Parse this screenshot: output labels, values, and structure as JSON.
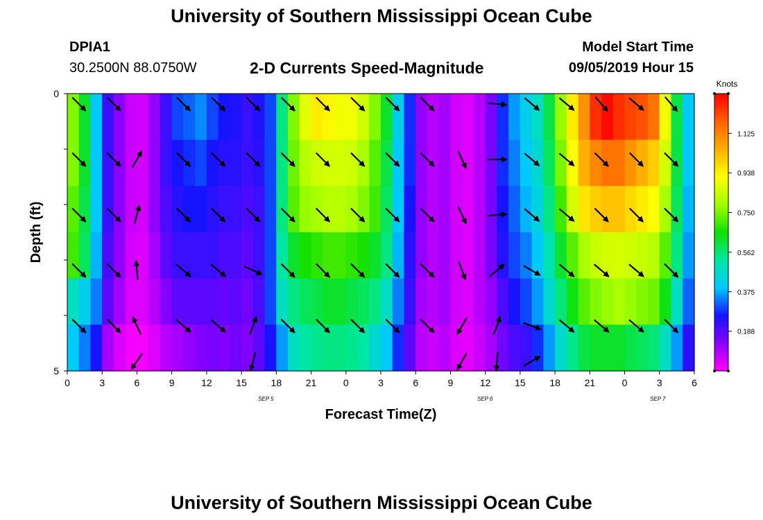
{
  "header": {
    "title_top": "University of Southern Mississippi Ocean Cube",
    "station": "DPIA1",
    "coords": "30.2500N 88.0750W",
    "subtitle": "2-D Currents Speed-Magnitude",
    "model_label": "Model Start Time",
    "model_time": "09/05/2019 Hour 15",
    "title_bottom": "University of Southern Mississippi Ocean Cube"
  },
  "chart_data": {
    "type": "heatmap",
    "title": "2-D Currents Speed-Magnitude",
    "xlabel": "Forecast Time(Z)",
    "ylabel": "Depth (ft)",
    "x_tick_labels": [
      "0",
      "3",
      "6",
      "9",
      "12",
      "15",
      "18",
      "21",
      "0",
      "3",
      "6",
      "9",
      "12",
      "15",
      "18",
      "21",
      "0",
      "3",
      "6"
    ],
    "date_labels": [
      {
        "label": "SEP 5",
        "at_tick": 5.7
      },
      {
        "label": "SEP 6",
        "at_tick": 11.99
      },
      {
        "label": "SEP 7",
        "at_tick": 16.95
      }
    ],
    "y_tick_labels": [
      "0",
      "5"
    ],
    "depth_range": [
      0,
      5
    ],
    "x_range_hours": [
      0,
      54
    ],
    "hours_per_column": 1,
    "depth_levels": 5,
    "colorbar": {
      "title": "Knots",
      "tick_labels": [
        "0.188",
        "0.375",
        "0.562",
        "0.750",
        "0.938",
        "1.125"
      ],
      "ticks": [
        0.188,
        0.375,
        0.562,
        0.75,
        0.938,
        1.125
      ],
      "range": [
        0,
        1.313
      ],
      "stops": [
        "#ff00ff",
        "#8a00ff",
        "#1414ff",
        "#00c8ff",
        "#00e8a0",
        "#10e000",
        "#a0ff00",
        "#ffff00",
        "#ffb000",
        "#ff6000",
        "#ff0000"
      ]
    },
    "speeds_by_row": [
      [
        0.76,
        0.62,
        0.4,
        0.22,
        0.13,
        0.06,
        0.05,
        0.12,
        0.22,
        0.3,
        0.32,
        0.35,
        0.3,
        0.26,
        0.25,
        0.22,
        0.25,
        0.3,
        0.55,
        0.76,
        0.88,
        0.95,
        0.93,
        0.9,
        0.9,
        0.85,
        0.76,
        0.62,
        0.42,
        0.28,
        0.12,
        0.08,
        0.1,
        0.05,
        0.04,
        0.08,
        0.15,
        0.28,
        0.36,
        0.42,
        0.48,
        0.6,
        0.78,
        0.95,
        1.1,
        1.25,
        1.3,
        1.25,
        1.22,
        1.2,
        1.15,
        0.9,
        0.6,
        0.4
      ],
      [
        0.76,
        0.62,
        0.4,
        0.22,
        0.13,
        0.06,
        0.05,
        0.12,
        0.22,
        0.26,
        0.28,
        0.3,
        0.26,
        0.24,
        0.24,
        0.22,
        0.24,
        0.3,
        0.55,
        0.74,
        0.82,
        0.85,
        0.86,
        0.86,
        0.85,
        0.8,
        0.72,
        0.6,
        0.4,
        0.28,
        0.12,
        0.08,
        0.1,
        0.05,
        0.04,
        0.08,
        0.15,
        0.28,
        0.34,
        0.4,
        0.46,
        0.58,
        0.75,
        0.92,
        1.05,
        1.12,
        1.15,
        1.15,
        1.1,
        1.05,
        1.0,
        0.86,
        0.6,
        0.4
      ],
      [
        0.72,
        0.6,
        0.4,
        0.22,
        0.13,
        0.06,
        0.05,
        0.12,
        0.2,
        0.24,
        0.26,
        0.26,
        0.24,
        0.22,
        0.22,
        0.2,
        0.22,
        0.3,
        0.55,
        0.72,
        0.78,
        0.8,
        0.82,
        0.82,
        0.8,
        0.76,
        0.7,
        0.58,
        0.4,
        0.26,
        0.12,
        0.08,
        0.1,
        0.05,
        0.04,
        0.08,
        0.15,
        0.26,
        0.32,
        0.38,
        0.44,
        0.55,
        0.7,
        0.86,
        0.96,
        1.0,
        1.02,
        1.02,
        0.98,
        0.95,
        0.92,
        0.8,
        0.58,
        0.38
      ],
      [
        0.7,
        0.58,
        0.38,
        0.2,
        0.12,
        0.05,
        0.04,
        0.1,
        0.18,
        0.22,
        0.22,
        0.22,
        0.22,
        0.2,
        0.2,
        0.18,
        0.22,
        0.3,
        0.52,
        0.62,
        0.66,
        0.68,
        0.7,
        0.7,
        0.68,
        0.66,
        0.62,
        0.55,
        0.38,
        0.24,
        0.12,
        0.08,
        0.1,
        0.05,
        0.04,
        0.08,
        0.15,
        0.24,
        0.3,
        0.34,
        0.4,
        0.5,
        0.62,
        0.72,
        0.8,
        0.84,
        0.86,
        0.86,
        0.85,
        0.84,
        0.82,
        0.72,
        0.55,
        0.36
      ],
      [
        0.48,
        0.42,
        0.34,
        0.18,
        0.1,
        0.04,
        0.04,
        0.08,
        0.14,
        0.18,
        0.18,
        0.18,
        0.18,
        0.17,
        0.18,
        0.16,
        0.2,
        0.3,
        0.48,
        0.55,
        0.58,
        0.6,
        0.62,
        0.62,
        0.6,
        0.58,
        0.55,
        0.48,
        0.34,
        0.22,
        0.1,
        0.08,
        0.1,
        0.05,
        0.04,
        0.08,
        0.12,
        0.2,
        0.26,
        0.3,
        0.36,
        0.46,
        0.56,
        0.64,
        0.72,
        0.76,
        0.78,
        0.8,
        0.78,
        0.76,
        0.74,
        0.64,
        0.48,
        0.32
      ],
      [
        0.4,
        0.34,
        0.26,
        0.1,
        0.04,
        0.01,
        0.01,
        0.04,
        0.08,
        0.1,
        0.12,
        0.14,
        0.15,
        0.14,
        0.16,
        0.14,
        0.18,
        0.26,
        0.36,
        0.48,
        0.52,
        0.54,
        0.55,
        0.55,
        0.54,
        0.52,
        0.46,
        0.4,
        0.28,
        0.18,
        0.08,
        0.06,
        0.08,
        0.04,
        0.03,
        0.06,
        0.1,
        0.16,
        0.2,
        0.22,
        0.28,
        0.36,
        0.46,
        0.54,
        0.6,
        0.62,
        0.62,
        0.62,
        0.6,
        0.58,
        0.56,
        0.48,
        0.36,
        0.24
      ]
    ],
    "arrow_columns_hours": [
      1,
      4,
      6,
      10,
      13,
      16,
      19,
      22,
      25,
      28,
      31,
      34,
      37,
      40,
      43,
      46,
      49,
      52
    ],
    "arrow_angles_deg": [
      [
        45,
        45,
        null,
        45,
        45,
        45,
        45,
        45,
        45,
        45,
        45,
        null,
        5,
        40,
        40,
        50,
        40,
        50
      ],
      [
        45,
        45,
        -60,
        45,
        45,
        45,
        45,
        45,
        45,
        45,
        45,
        65,
        0,
        40,
        40,
        45,
        45,
        45
      ],
      [
        45,
        45,
        -75,
        45,
        45,
        45,
        45,
        45,
        45,
        45,
        45,
        65,
        -5,
        40,
        40,
        45,
        45,
        45
      ],
      [
        45,
        45,
        -95,
        40,
        40,
        25,
        45,
        45,
        45,
        45,
        45,
        70,
        -40,
        30,
        40,
        40,
        40,
        45
      ],
      [
        45,
        45,
        -115,
        40,
        40,
        -70,
        45,
        45,
        45,
        45,
        45,
        120,
        -70,
        20,
        40,
        40,
        40,
        45
      ],
      [
        null,
        null,
        125,
        null,
        null,
        105,
        null,
        null,
        null,
        null,
        null,
        120,
        95,
        -30,
        null,
        null,
        null,
        null
      ]
    ]
  }
}
